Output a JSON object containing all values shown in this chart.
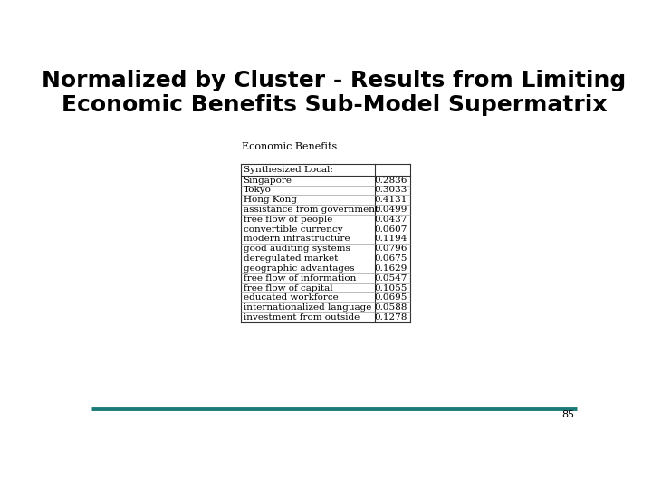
{
  "title_line1": "Normalized by Cluster - Results from Limiting",
  "title_line2": "Economic Benefits Sub-Model Supermatrix",
  "table_label": "Economic Benefits",
  "table_subheader": "Synthesized Local:",
  "rows": [
    [
      "Singapore",
      "0.2836"
    ],
    [
      "Tokyo",
      "0.3033"
    ],
    [
      "Hong Kong",
      "0.4131"
    ],
    [
      "assistance from government",
      "0.0499"
    ],
    [
      "free flow of people",
      "0.0437"
    ],
    [
      "convertible currency",
      "0.0607"
    ],
    [
      "modern infrastructure",
      "0.1194"
    ],
    [
      "good auditing systems",
      "0.0796"
    ],
    [
      "deregulated market",
      "0.0675"
    ],
    [
      "geographic advantages",
      "0.1629"
    ],
    [
      "free flow of information",
      "0.0547"
    ],
    [
      "free flow of capital",
      "0.1055"
    ],
    [
      "educated workforce",
      "0.0695"
    ],
    [
      "internationalized language",
      "0.0588"
    ],
    [
      "investment from outside",
      "0.1278"
    ]
  ],
  "page_number": "85",
  "footer_line_color": "#1a7a78",
  "background_color": "#ffffff",
  "title_fontsize": 18,
  "table_fontsize": 7.5,
  "label_fontsize": 8
}
